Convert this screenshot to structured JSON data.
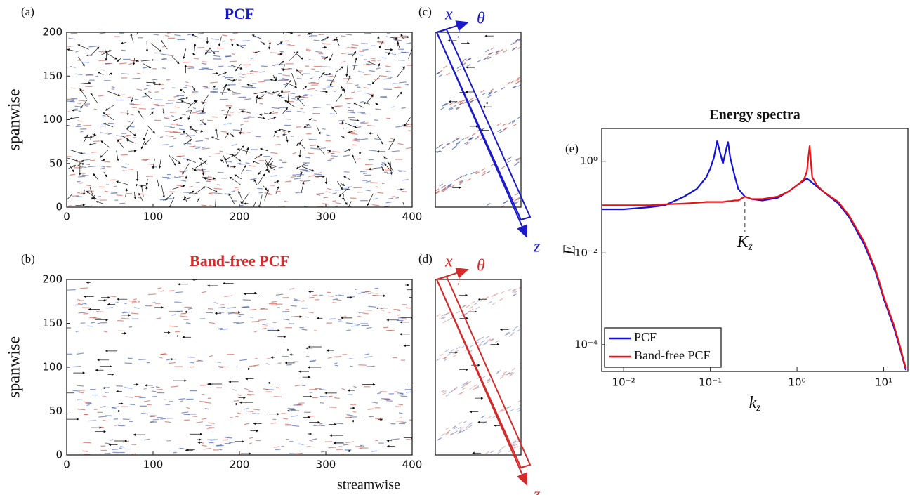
{
  "chart_data": [
    {
      "type": "field",
      "panel_label": "(a)",
      "title": "PCF",
      "color": "#1a1acc",
      "ylabel": "spanwise",
      "xlim": [
        0,
        400
      ],
      "ylim": [
        0,
        200
      ],
      "xticks": [
        0,
        100,
        200,
        300,
        400
      ],
      "yticks": [
        0,
        50,
        100,
        150,
        200
      ]
    },
    {
      "type": "field",
      "panel_label": "(b)",
      "title": "Band-free PCF",
      "color": "#d42a2a",
      "ylabel": "spanwise",
      "xlabel": "streamwise",
      "xlim": [
        0,
        400
      ],
      "ylim": [
        0,
        200
      ],
      "xticks": [
        0,
        100,
        200,
        300,
        400
      ],
      "yticks": [
        0,
        50,
        100,
        150,
        200
      ]
    },
    {
      "type": "schematic",
      "panel_label": "(c)",
      "color": "#1a1acc",
      "x_label": "x",
      "angle_label": "θ",
      "z_label": "z"
    },
    {
      "type": "schematic",
      "panel_label": "(d)",
      "color": "#d42a2a",
      "x_label": "x",
      "angle_label": "θ",
      "z_label": "z"
    },
    {
      "type": "line",
      "panel_label": "(e)",
      "title": "Energy spectra",
      "xlabel": {
        "base": "k",
        "sub": "z"
      },
      "ylabel": "E",
      "xscale": "log",
      "yscale": "log",
      "xlim": [
        0.0056,
        19
      ],
      "ylim": [
        2.6e-05,
        5.2
      ],
      "xticks": [
        {
          "value": 0.01,
          "label": "10⁻²"
        },
        {
          "value": 0.1,
          "label": "10⁻¹"
        },
        {
          "value": 1,
          "label": "10⁰"
        },
        {
          "value": 10,
          "label": "10¹"
        }
      ],
      "yticks": [
        {
          "value": 0.0001,
          "label": "10⁻⁴"
        },
        {
          "value": 0.01,
          "label": "10⁻²"
        },
        {
          "value": 1,
          "label": "10⁰"
        }
      ],
      "legend": "lower left",
      "annotation": {
        "text": {
          "base": "K",
          "sub": "z"
        },
        "x": 0.25
      },
      "x": [
        0.0056,
        0.01,
        0.02,
        0.03,
        0.05,
        0.07,
        0.09,
        0.1,
        0.11,
        0.12,
        0.13,
        0.14,
        0.16,
        0.17,
        0.19,
        0.21,
        0.25,
        0.3,
        0.4,
        0.6,
        0.8,
        1.0,
        1.2,
        1.3,
        1.35,
        1.4,
        1.45,
        1.5,
        1.7,
        2,
        3,
        4,
        6,
        8,
        10,
        13,
        15,
        18
      ],
      "series": [
        {
          "name": "PCF",
          "color": "#1010e0",
          "values": [
            0.09,
            0.09,
            0.1,
            0.11,
            0.17,
            0.25,
            0.45,
            0.7,
            1.2,
            2.8,
            1.5,
            0.9,
            2.7,
            1.2,
            0.5,
            0.25,
            0.17,
            0.15,
            0.14,
            0.16,
            0.22,
            0.3,
            0.38,
            0.42,
            0.4,
            0.38,
            0.36,
            0.34,
            0.28,
            0.22,
            0.12,
            0.06,
            0.015,
            0.004,
            0.001,
            0.00025,
            0.0001,
            2.8e-05
          ]
        },
        {
          "name": "Band-free PCF",
          "color": "#f01010",
          "values": [
            0.11,
            0.11,
            0.11,
            0.115,
            0.12,
            0.125,
            0.13,
            0.13,
            0.13,
            0.13,
            0.13,
            0.13,
            0.135,
            0.135,
            0.14,
            0.14,
            0.17,
            0.15,
            0.15,
            0.17,
            0.22,
            0.3,
            0.4,
            0.6,
            1.2,
            2.2,
            0.9,
            0.45,
            0.3,
            0.22,
            0.13,
            0.065,
            0.017,
            0.0045,
            0.0011,
            0.00028,
            0.00011,
            3e-05
          ]
        }
      ]
    }
  ]
}
